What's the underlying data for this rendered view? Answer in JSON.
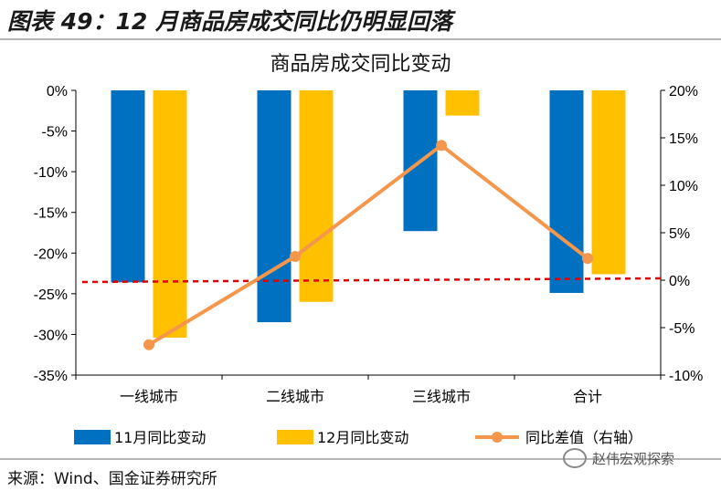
{
  "header": {
    "figure_title": "图表 49：12 月商品房成交同比仍明显回落"
  },
  "watermark": "赵伟宏观探索",
  "source": "来源：Wind、国金证券研究所",
  "colors": {
    "series_nov": "#0070C0",
    "series_dec": "#FFC000",
    "series_diff": "#F4964B",
    "zero_line": "#E00000"
  },
  "chart_data": {
    "type": "bar",
    "title": "商品房成交同比变动",
    "categories": [
      "一线城市",
      "二线城市",
      "三线城市",
      "合计"
    ],
    "series": [
      {
        "name": "11月同比变动",
        "type": "bar",
        "axis": "left",
        "values": [
          -23.6,
          -28.5,
          -17.3,
          -24.9
        ]
      },
      {
        "name": "12月同比变动",
        "type": "bar",
        "axis": "left",
        "values": [
          -30.4,
          -26.0,
          -3.1,
          -22.6
        ]
      },
      {
        "name": "同比差值（右轴）",
        "type": "line",
        "axis": "right",
        "values": [
          -6.8,
          2.5,
          14.2,
          2.3
        ]
      }
    ],
    "y_left": {
      "min": -35,
      "max": 0,
      "step": 5,
      "unit": "%",
      "ticks": [
        "0%",
        "-5%",
        "-10%",
        "-15%",
        "-20%",
        "-25%",
        "-30%",
        "-35%"
      ]
    },
    "y_right": {
      "min": -10,
      "max": 20,
      "step": 5,
      "unit": "%",
      "ticks": [
        "20%",
        "15%",
        "10%",
        "5%",
        "0%",
        "-5%",
        "-10%"
      ]
    },
    "reference_line": {
      "axis": "right",
      "value": 0,
      "style": "dashed"
    },
    "legend_position": "bottom",
    "grid": false
  }
}
